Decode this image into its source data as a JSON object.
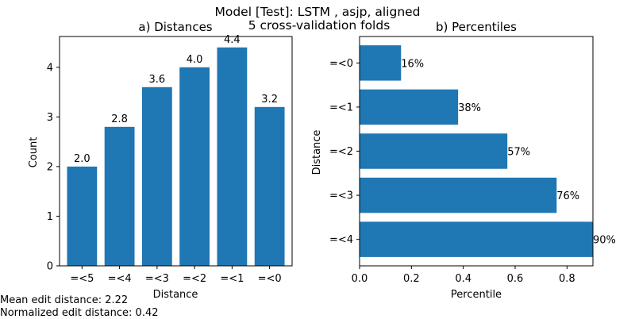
{
  "figure": {
    "suptitle_line1": "Model [Test]: LSTM , asjp, aligned",
    "suptitle_line2": "5 cross-validation folds"
  },
  "footer": {
    "mean_edit_distance": "Mean edit distance: 2.22",
    "normalized_edit_distance": "Normalized edit distance: 0.42"
  },
  "colors": {
    "bar": "#1f77b4"
  },
  "chart_data": [
    {
      "type": "bar",
      "title": "a) Distances",
      "xlabel": "Distance",
      "ylabel": "Count",
      "categories": [
        "=<5",
        "=<4",
        "=<3",
        "=<2",
        "=<1",
        "=<0"
      ],
      "values": [
        2.0,
        2.8,
        3.6,
        4.0,
        4.4,
        3.2
      ],
      "value_labels": [
        "2.0",
        "2.8",
        "3.6",
        "4.0",
        "4.4",
        "3.2"
      ],
      "ylim": [
        0,
        4.62
      ],
      "yticks": [
        0,
        1,
        2,
        3,
        4
      ],
      "ytick_labels": [
        "0",
        "1",
        "2",
        "3",
        "4"
      ],
      "grid": false
    },
    {
      "type": "bar",
      "orientation": "horizontal",
      "title": "b) Percentiles",
      "xlabel": "Percentile",
      "ylabel": "Distance",
      "categories": [
        "=<0",
        "=<1",
        "=<2",
        "=<3",
        "=<4"
      ],
      "values": [
        0.16,
        0.38,
        0.57,
        0.76,
        0.9
      ],
      "value_labels": [
        "16%",
        "38%",
        "57%",
        "76%",
        "90%"
      ],
      "xlim": [
        0,
        0.9
      ],
      "xticks": [
        0.0,
        0.2,
        0.4,
        0.6,
        0.8
      ],
      "xtick_labels": [
        "0.0",
        "0.2",
        "0.4",
        "0.6",
        "0.8"
      ],
      "grid": false
    }
  ]
}
